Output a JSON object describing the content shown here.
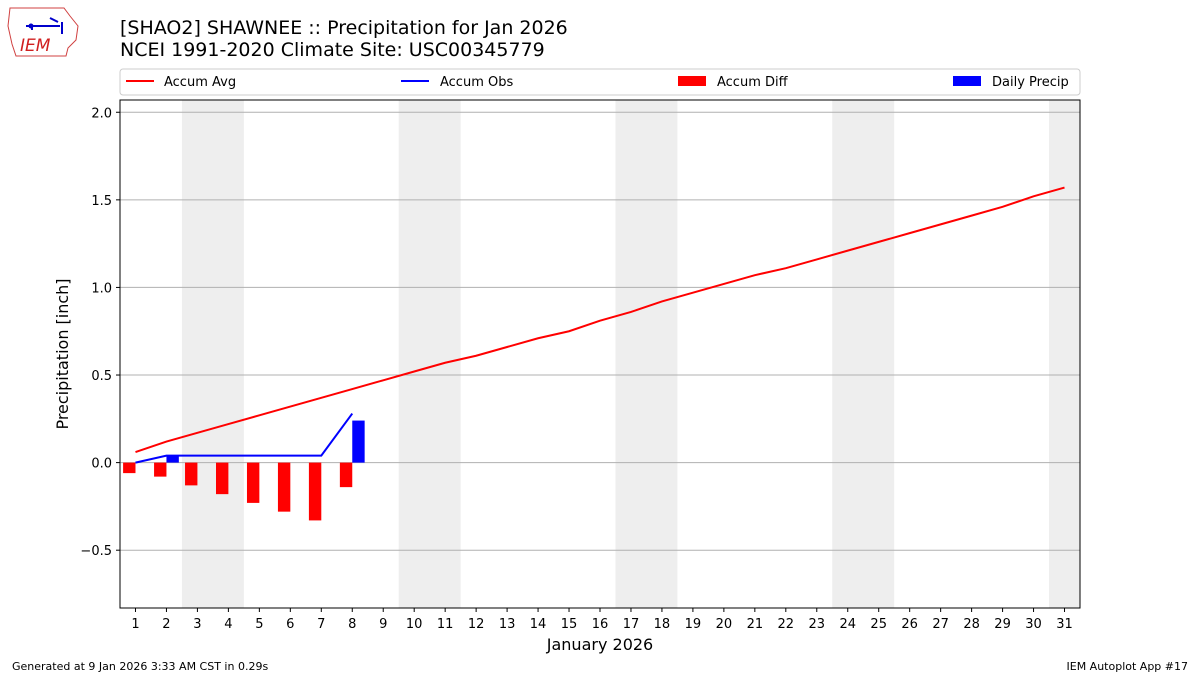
{
  "header": {
    "title_line1": "[SHAO2] SHAWNEE :: Precipitation for Jan 2026",
    "title_line2": "NCEI 1991-2020 Climate Site: USC00345779",
    "logo_text": "IEM"
  },
  "footer": {
    "left": "Generated at 9 Jan 2026 3:33 AM CST in 0.29s",
    "right": "IEM Autoplot App #17"
  },
  "chart_data": {
    "type": "bar",
    "xlabel": "January 2026",
    "ylabel": "Precipitation [inch]",
    "xlim": [
      0.5,
      31.5
    ],
    "ylim": [
      -0.83,
      2.07
    ],
    "yticks": [
      -0.5,
      0.0,
      0.5,
      1.0,
      1.5,
      2.0
    ],
    "ytick_labels": [
      "−0.5",
      "0.0",
      "0.5",
      "1.0",
      "1.5",
      "2.0"
    ],
    "xticks": [
      1,
      2,
      3,
      4,
      5,
      6,
      7,
      8,
      9,
      10,
      11,
      12,
      13,
      14,
      15,
      16,
      17,
      18,
      19,
      20,
      21,
      22,
      23,
      24,
      25,
      26,
      27,
      28,
      29,
      30,
      31
    ],
    "grid": "horizontal",
    "legend_placement": "top",
    "weekend_shading": [
      [
        2.5,
        4.5
      ],
      [
        9.5,
        11.5
      ],
      [
        16.5,
        18.5
      ],
      [
        23.5,
        25.5
      ],
      [
        30.5,
        31.5
      ]
    ],
    "colors": {
      "avg": "#ff0000",
      "obs": "#0000ff",
      "diff": "#ff0000",
      "daily": "#0000ff",
      "shade": "#eeeeee"
    },
    "series": [
      {
        "name": "Accum Avg",
        "kind": "line",
        "x": [
          1,
          2,
          3,
          4,
          5,
          6,
          7,
          8,
          9,
          10,
          11,
          12,
          13,
          14,
          15,
          16,
          17,
          18,
          19,
          20,
          21,
          22,
          23,
          24,
          25,
          26,
          27,
          28,
          29,
          30,
          31
        ],
        "values": [
          0.06,
          0.12,
          0.17,
          0.22,
          0.27,
          0.32,
          0.37,
          0.42,
          0.47,
          0.52,
          0.57,
          0.61,
          0.66,
          0.71,
          0.75,
          0.81,
          0.86,
          0.92,
          0.97,
          1.02,
          1.07,
          1.11,
          1.16,
          1.21,
          1.26,
          1.31,
          1.36,
          1.41,
          1.46,
          1.52,
          1.57
        ]
      },
      {
        "name": "Accum Obs",
        "kind": "line",
        "x": [
          1,
          2,
          3,
          4,
          5,
          6,
          7,
          8
        ],
        "values": [
          0.0,
          0.04,
          0.04,
          0.04,
          0.04,
          0.04,
          0.04,
          0.28
        ]
      },
      {
        "name": "Accum Diff",
        "kind": "bar",
        "x": [
          1,
          2,
          3,
          4,
          5,
          6,
          7,
          8
        ],
        "values": [
          -0.06,
          -0.08,
          -0.13,
          -0.18,
          -0.23,
          -0.28,
          -0.33,
          -0.14
        ]
      },
      {
        "name": "Daily Precip",
        "kind": "bar",
        "x": [
          1,
          2,
          3,
          4,
          5,
          6,
          7,
          8
        ],
        "values": [
          0,
          0.04,
          0,
          0,
          0,
          0,
          0,
          0.24
        ]
      }
    ]
  }
}
